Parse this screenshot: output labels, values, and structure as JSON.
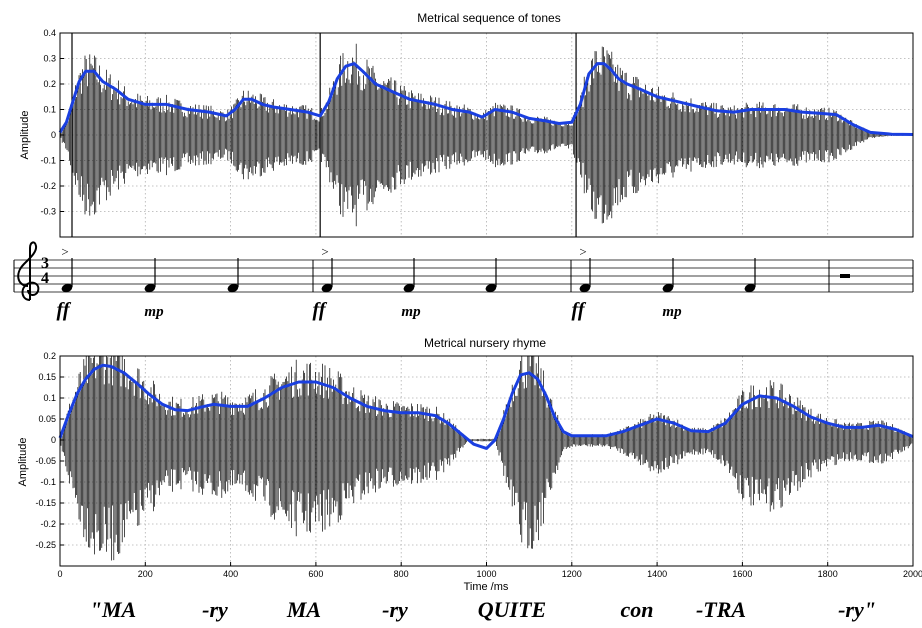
{
  "chart_data": [
    {
      "type": "line",
      "title": "Metrical sequence of tones",
      "xlabel": "",
      "ylabel": "Amplitude",
      "xlim": [
        0,
        2000
      ],
      "ylim": [
        -0.4,
        0.4
      ],
      "yticks": [
        -0.3,
        -0.2,
        -0.1,
        0,
        0.1,
        0.2,
        0.3,
        0.4
      ],
      "ytick_labels": [
        "-0.3",
        "-0.2",
        "-0.1",
        "0",
        "0.1",
        "0.2",
        "0.3",
        "0.4"
      ],
      "grid": true,
      "series": [
        {
          "color": "#1a3fe0",
          "x": [
            0,
            15,
            30,
            45,
            60,
            80,
            100,
            130,
            160,
            200,
            250,
            300,
            350,
            390,
            410,
            430,
            450,
            475,
            500,
            540,
            580,
            610,
            630,
            650,
            670,
            690,
            710,
            740,
            780,
            820,
            880,
            920,
            960,
            990,
            1020,
            1060,
            1100,
            1140,
            1170,
            1200,
            1220,
            1240,
            1260,
            1275,
            1290,
            1310,
            1330,
            1360,
            1400,
            1450,
            1500,
            1540,
            1580,
            1620,
            1660,
            1700,
            1740,
            1780,
            1820,
            1860,
            1900,
            1950,
            2000
          ],
          "y": [
            0.01,
            0.05,
            0.13,
            0.21,
            0.25,
            0.25,
            0.21,
            0.18,
            0.14,
            0.12,
            0.12,
            0.1,
            0.09,
            0.075,
            0.1,
            0.14,
            0.14,
            0.12,
            0.11,
            0.1,
            0.09,
            0.075,
            0.13,
            0.22,
            0.27,
            0.28,
            0.25,
            0.2,
            0.17,
            0.14,
            0.12,
            0.1,
            0.09,
            0.07,
            0.1,
            0.09,
            0.065,
            0.055,
            0.045,
            0.05,
            0.12,
            0.24,
            0.28,
            0.28,
            0.26,
            0.22,
            0.2,
            0.18,
            0.15,
            0.13,
            0.11,
            0.095,
            0.09,
            0.1,
            0.1,
            0.1,
            0.09,
            0.085,
            0.08,
            0.04,
            0.01,
            0.003,
            0.002
          ]
        }
      ]
    },
    {
      "type": "line",
      "title": "Metrical nursery rhyme",
      "xlabel": "Time /ms",
      "ylabel": "Amplitude",
      "xlim": [
        0,
        2000
      ],
      "ylim": [
        -0.3,
        0.2
      ],
      "xticks": [
        0,
        200,
        400,
        600,
        800,
        1000,
        1200,
        1400,
        1600,
        1800,
        2000
      ],
      "xtick_labels": [
        "0",
        "200",
        "400",
        "600",
        "800",
        "1000",
        "1200",
        "1400",
        "1600",
        "1800",
        "2000"
      ],
      "yticks": [
        -0.25,
        -0.2,
        -0.15,
        -0.1,
        -0.05,
        0,
        0.05,
        0.1,
        0.15,
        0.2
      ],
      "ytick_labels": [
        "-0.25",
        "-0.2",
        "-0.15",
        "-0.1",
        "-0.05",
        "0",
        "0.05",
        "0.1",
        "0.15",
        "0.2"
      ],
      "grid": true,
      "series": [
        {
          "color": "#1a3fe0",
          "x": [
            0,
            20,
            40,
            60,
            80,
            100,
            120,
            150,
            180,
            210,
            240,
            270,
            300,
            330,
            360,
            400,
            440,
            480,
            520,
            560,
            600,
            640,
            680,
            720,
            760,
            800,
            840,
            880,
            910,
            940,
            970,
            1000,
            1020,
            1040,
            1060,
            1080,
            1100,
            1120,
            1140,
            1160,
            1180,
            1200,
            1240,
            1280,
            1320,
            1360,
            1400,
            1440,
            1480,
            1520,
            1560,
            1600,
            1640,
            1680,
            1720,
            1760,
            1800,
            1840,
            1880,
            1920,
            1960,
            2000
          ],
          "y": [
            0.005,
            0.06,
            0.11,
            0.145,
            0.168,
            0.178,
            0.175,
            0.16,
            0.135,
            0.108,
            0.085,
            0.072,
            0.07,
            0.078,
            0.085,
            0.08,
            0.08,
            0.1,
            0.125,
            0.138,
            0.138,
            0.125,
            0.1,
            0.08,
            0.07,
            0.065,
            0.065,
            0.058,
            0.04,
            0.015,
            -0.01,
            -0.02,
            0.0,
            0.05,
            0.11,
            0.155,
            0.16,
            0.145,
            0.105,
            0.055,
            0.02,
            0.01,
            0.01,
            0.01,
            0.02,
            0.035,
            0.05,
            0.04,
            0.022,
            0.02,
            0.04,
            0.085,
            0.105,
            0.1,
            0.08,
            0.055,
            0.04,
            0.03,
            0.03,
            0.035,
            0.025,
            0.008
          ]
        }
      ]
    }
  ],
  "score": {
    "time_signature_top": "3",
    "time_signature_bottom": "4",
    "accent_mark": ">",
    "dynamics": [
      "ff",
      "mp",
      "ff",
      "mp",
      "ff",
      "mp"
    ]
  },
  "lyrics": [
    "\"MA",
    "-ry",
    "MA",
    "-ry",
    "QUITE",
    "con",
    "-TRA",
    "-ry\""
  ]
}
